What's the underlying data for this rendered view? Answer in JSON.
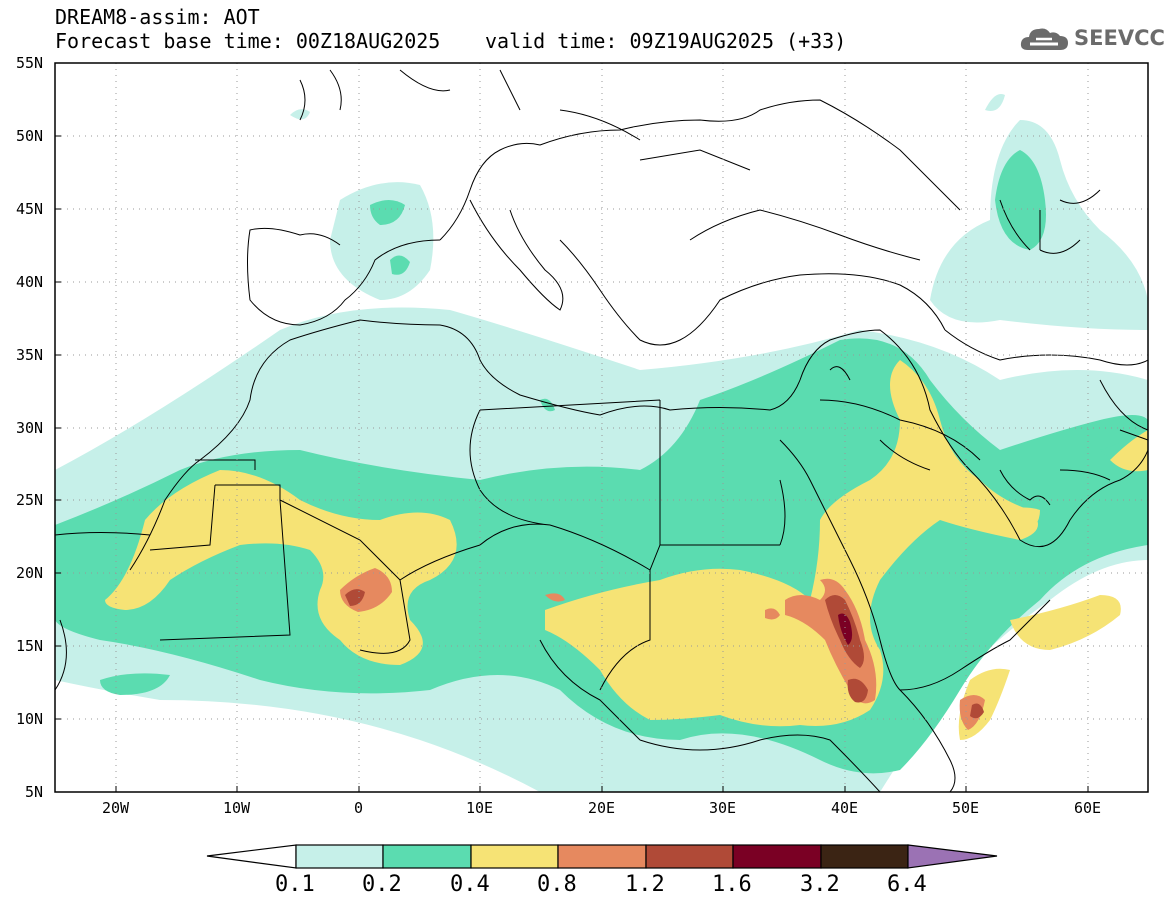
{
  "title": {
    "line1": "DREAM8-assim: AOT",
    "base_time": "Forecast base time: 00Z18AUG2025",
    "valid_time": "valid time: 09Z19AUG2025 (+33)"
  },
  "logo": {
    "text": "SEEVCCC",
    "icon": "cloud-icon",
    "color": "#6b6b6b"
  },
  "axes": {
    "lat_labels": [
      "55N",
      "50N",
      "45N",
      "40N",
      "35N",
      "30N",
      "25N",
      "20N",
      "15N",
      "10N",
      "5N"
    ],
    "lon_labels": [
      "20W",
      "10W",
      "0",
      "10E",
      "20E",
      "30E",
      "40E",
      "50E",
      "60E"
    ]
  },
  "colorbar": {
    "labels": [
      "0.1",
      "0.2",
      "0.4",
      "0.8",
      "1.2",
      "1.6",
      "3.2",
      "6.4"
    ],
    "colors": [
      "#ffffff",
      "#c6f0e9",
      "#5bdcb0",
      "#f6e375",
      "#e6895f",
      "#b04a37",
      "#7a0024",
      "#3b2414",
      "#9b72b4"
    ]
  }
}
